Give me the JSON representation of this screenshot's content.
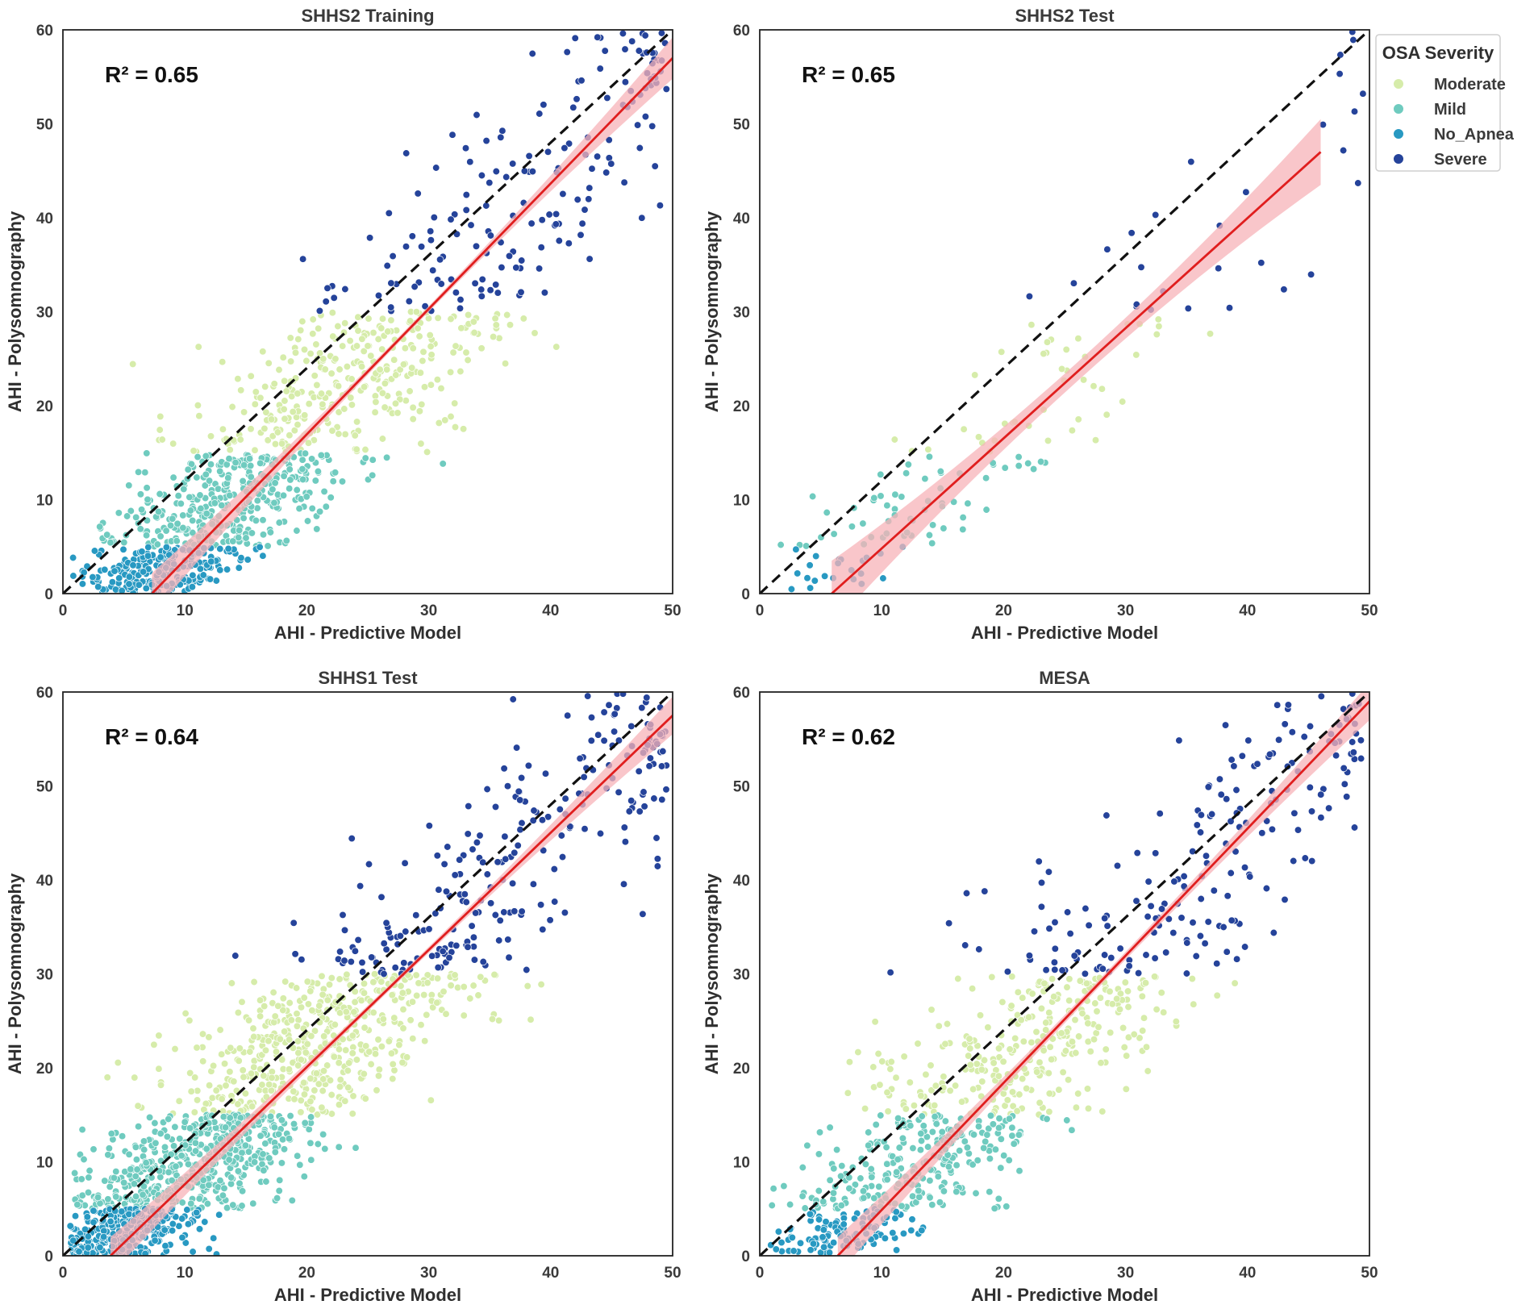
{
  "legend": {
    "title": "OSA Severity",
    "entries": [
      {
        "label": "Moderate",
        "color": "#d6ecaa"
      },
      {
        "label": "Mild",
        "color": "#6fcbbf"
      },
      {
        "label": "No_Apnea",
        "color": "#2899c2"
      },
      {
        "label": "Severe",
        "color": "#25439a"
      }
    ]
  },
  "colors": {
    "regression": "#e01e1e",
    "confidence_band": "#f7b3b8",
    "identity_line": "#111111",
    "axes": "#222222"
  },
  "chart_data": [
    {
      "type": "scatter",
      "title": "SHHS2 Training",
      "xlabel": "AHI - Predictive Model",
      "ylabel": "AHI - Polysomnography",
      "r2_label": "R² = 0.65",
      "xlim": [
        0,
        50
      ],
      "ylim": [
        0,
        60
      ],
      "xticks": [
        0,
        10,
        20,
        30,
        40,
        50
      ],
      "yticks": [
        0,
        10,
        20,
        30,
        40,
        50,
        60
      ],
      "identity_line": [
        [
          0,
          0
        ],
        [
          50,
          60
        ]
      ],
      "regression_line": [
        [
          7.3,
          0
        ],
        [
          50,
          57
        ]
      ],
      "band_halfwidth": [
        0.3,
        2.2
      ],
      "points_per_category": {
        "No_Apnea": 260,
        "Mild": 360,
        "Moderate": 330,
        "Severe": 170
      },
      "seed": 11
    },
    {
      "type": "scatter",
      "title": "SHHS2 Test",
      "xlabel": "AHI - Predictive Model",
      "ylabel": "AHI - Polysomnography",
      "r2_label": "R² = 0.65",
      "xlim": [
        0,
        50
      ],
      "ylim": [
        0,
        60
      ],
      "xticks": [
        0,
        10,
        20,
        30,
        40,
        50
      ],
      "yticks": [
        0,
        10,
        20,
        30,
        40,
        50,
        60
      ],
      "identity_line": [
        [
          0,
          0
        ],
        [
          50,
          60
        ]
      ],
      "regression_line": [
        [
          5.9,
          0
        ],
        [
          46,
          47
        ]
      ],
      "band_halfwidth": [
        1.0,
        3.5
      ],
      "points_per_category": {
        "No_Apnea": 22,
        "Mild": 60,
        "Moderate": 42,
        "Severe": 28
      },
      "seed": 23
    },
    {
      "type": "scatter",
      "title": "SHHS1 Test",
      "xlabel": "AHI - Predictive Model",
      "ylabel": "AHI - Polysomnography",
      "r2_label": "R² = 0.64",
      "xlim": [
        0,
        50
      ],
      "ylim": [
        0,
        60
      ],
      "xticks": [
        0,
        10,
        20,
        30,
        40,
        50
      ],
      "yticks": [
        0,
        10,
        20,
        30,
        40,
        50,
        60
      ],
      "identity_line": [
        [
          0,
          0
        ],
        [
          50,
          60
        ]
      ],
      "regression_line": [
        [
          3.9,
          0
        ],
        [
          50,
          57.5
        ]
      ],
      "band_halfwidth": [
        0.3,
        2.0
      ],
      "points_per_category": {
        "No_Apnea": 330,
        "Mild": 520,
        "Moderate": 480,
        "Severe": 240
      },
      "seed": 37
    },
    {
      "type": "scatter",
      "title": "MESA",
      "xlabel": "AHI - Predictive Model",
      "ylabel": "AHI - Polysomnography",
      "r2_label": "R² = 0.62",
      "xlim": [
        0,
        50
      ],
      "ylim": [
        0,
        60
      ],
      "xticks": [
        0,
        10,
        20,
        30,
        40,
        50
      ],
      "yticks": [
        0,
        10,
        20,
        30,
        40,
        50,
        60
      ],
      "identity_line": [
        [
          0,
          0
        ],
        [
          50,
          60
        ]
      ],
      "regression_line": [
        [
          6.4,
          0
        ],
        [
          50,
          59
        ]
      ],
      "band_halfwidth": [
        0.4,
        2.0
      ],
      "points_per_category": {
        "No_Apnea": 110,
        "Mild": 260,
        "Moderate": 300,
        "Severe": 190
      },
      "seed": 53
    }
  ]
}
